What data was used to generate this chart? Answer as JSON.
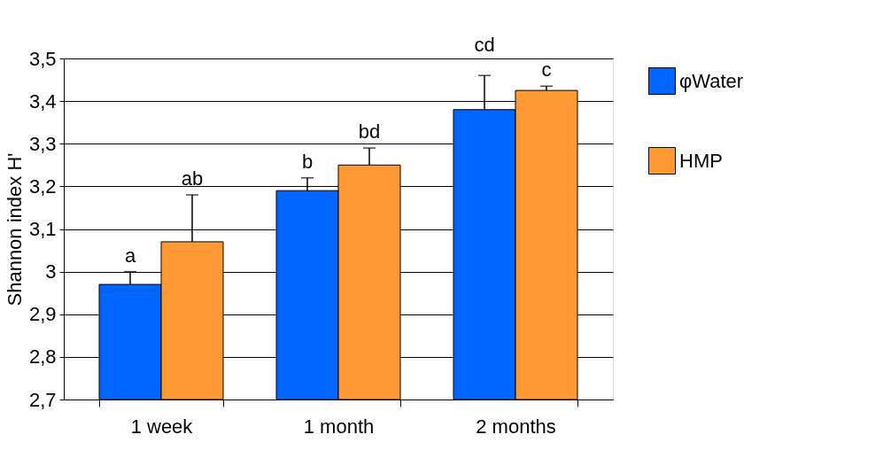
{
  "chart_data": {
    "type": "bar",
    "ylabel": "Shannon index H'",
    "categories": [
      "1 week",
      "1 month",
      "2 months"
    ],
    "series": [
      {
        "name": "φWater",
        "color": "#0066ff",
        "values": [
          2.97,
          3.19,
          3.38
        ],
        "errors": [
          [
            2.97,
            3.0
          ],
          [
            3.19,
            3.22
          ],
          [
            3.38,
            3.46
          ]
        ],
        "value_labels": [
          "a",
          "b",
          "cd"
        ]
      },
      {
        "name": "HMP",
        "color": "#ff9933",
        "values": [
          3.07,
          3.25,
          3.425
        ],
        "errors": [
          [
            3.07,
            3.18
          ],
          [
            3.25,
            3.29
          ],
          [
            3.425,
            3.435
          ]
        ],
        "value_labels": [
          "ab",
          "bd",
          "c"
        ]
      }
    ],
    "ylim": [
      2.7,
      3.5
    ],
    "yticks": [
      {
        "value": 2.7,
        "label": "2,7"
      },
      {
        "value": 2.8,
        "label": "2,8"
      },
      {
        "value": 2.9,
        "label": "2,9"
      },
      {
        "value": 3,
        "label": "3"
      },
      {
        "value": 3.1,
        "label": "3,1"
      },
      {
        "value": 3.2,
        "label": "3,2"
      },
      {
        "value": 3.3,
        "label": "3,3"
      },
      {
        "value": 3.4,
        "label": "3,4"
      },
      {
        "value": 3.5,
        "label": "3,5"
      }
    ],
    "grid": "y",
    "legend": "right"
  }
}
